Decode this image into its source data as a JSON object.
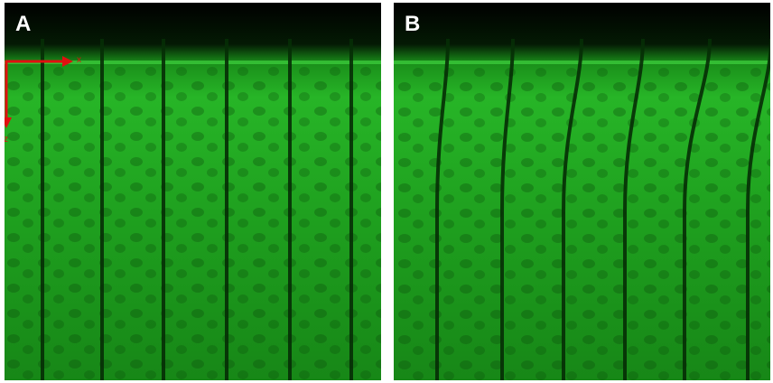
{
  "panels": [
    {
      "label": "A",
      "lines": "straight"
    },
    {
      "label": "B",
      "lines": "curved"
    }
  ],
  "axes": {
    "x_label": "x",
    "z_label": "z",
    "color": "#e01010"
  },
  "colors": {
    "tissue": "#1ea51e",
    "surface": "#000000"
  }
}
